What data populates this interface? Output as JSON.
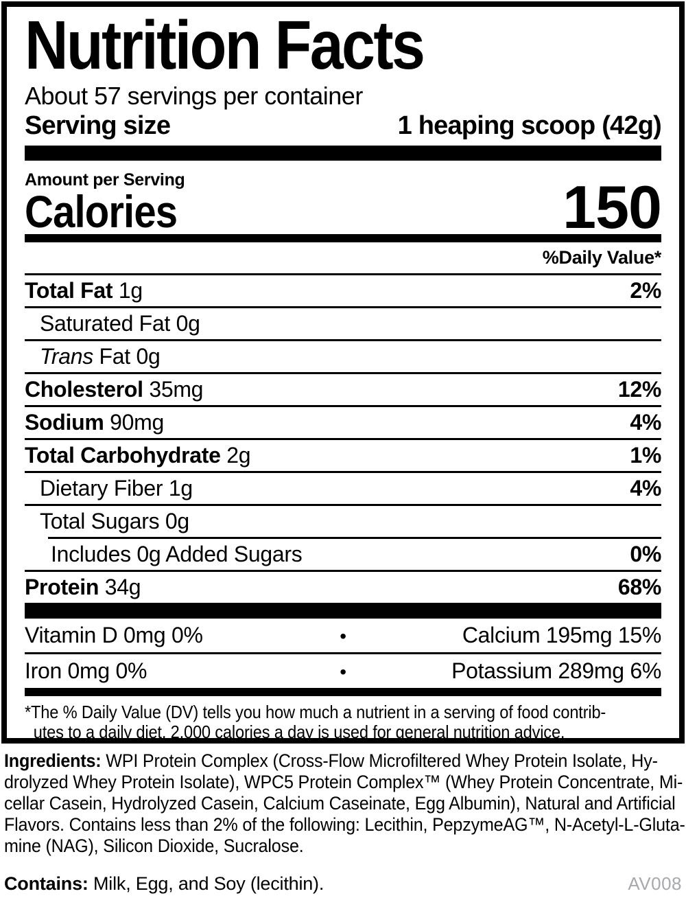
{
  "colors": {
    "ink": "#000000",
    "code_gray": "#a7a9ac",
    "background": "#ffffff"
  },
  "label": {
    "title": "Nutrition Facts",
    "servings_per_container": "About 57 servings per container",
    "serving_size_label": "Serving size",
    "serving_size_value": "1 heaping scoop (42g)",
    "amount_per_serving": "Amount per Serving",
    "calories_label": "Calories",
    "calories_value": "150",
    "daily_value_header": "%Daily Value*",
    "rows": [
      {
        "bold": "Total Fat",
        "text": " 1g",
        "dv": "2%"
      },
      {
        "text": "Saturated Fat 0g"
      },
      {
        "italic": "Trans",
        "text": " Fat 0g"
      },
      {
        "bold": "Cholesterol",
        "text": " 35mg",
        "dv": "12%"
      },
      {
        "bold": "Sodium",
        "text": " 90mg",
        "dv": "4%"
      },
      {
        "bold": "Total Carbohydrate",
        "text": " 2g",
        "dv": "1%"
      },
      {
        "text": "Dietary Fiber 1g",
        "dv": "4%"
      },
      {
        "text": "Total Sugars 0g"
      },
      {
        "text": "Includes 0g Added Sugars",
        "dv": "0%"
      },
      {
        "bold": "Protein",
        "text": " 34g",
        "dv": "68%"
      }
    ],
    "bullet": "•",
    "micronutrients": [
      {
        "left": "Vitamin D 0mg 0%",
        "right": "Calcium 195mg 15%"
      },
      {
        "left": "Iron 0mg 0%",
        "right": "Potassium 289mg 6%"
      }
    ],
    "footnote": {
      "line1": "*The % Daily Value (DV) tells you how much a nutrient in a serving of food contrib-",
      "line2": "utes to a daily diet. 2,000 calories a day is used for general nutrition advice."
    }
  },
  "ingredients": {
    "heading": "Ingredients:",
    "lines": [
      " WPI Protein Complex (Cross-Flow Microfiltered Whey Protein Isolate, Hy-",
      "drolyzed Whey Protein Isolate), WPC5 Protein Complex™ (Whey Protein Concentrate, Mi-",
      "cellar Casein, Hydrolyzed Casein, Calcium Caseinate, Egg Albumin), Natural and Artificial",
      "Flavors. Contains less than 2% of the following: Lecithin, PepzymeAG™, N-Acetyl-L-Gluta-",
      "mine (NAG), Silicon Dioxide, Sucralose."
    ]
  },
  "contains": {
    "heading": "Contains:",
    "text": " Milk, Egg, and Soy (lecithin)."
  },
  "code": "AV008"
}
